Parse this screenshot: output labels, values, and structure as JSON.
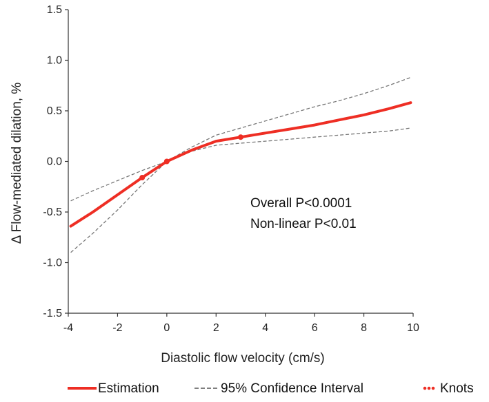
{
  "chart_data": {
    "type": "line",
    "title": "",
    "xlabel": "Diastolic flow velocity (cm/s)",
    "ylabel": "Δ Flow-mediated dilation, %",
    "xlim": [
      -4,
      10
    ],
    "ylim": [
      -1.5,
      1.5
    ],
    "x_ticks": [
      "-4",
      "-2",
      "0",
      "2",
      "4",
      "6",
      "8",
      "10"
    ],
    "y_ticks": [
      "1.5",
      "1.0",
      "0.5",
      "0.0",
      "-0.5",
      "-1.0",
      "-1.5"
    ],
    "grid": false,
    "legend_position": "bottom",
    "colors": {
      "estimation": "#ee2e24",
      "ci": "#777777",
      "knots": "#ee2e24"
    },
    "series": [
      {
        "name": "Estimation",
        "style": "solid",
        "x": [
          -3.9,
          -3,
          -2,
          -1,
          0,
          1,
          2,
          3,
          4,
          5,
          6,
          7,
          8,
          9,
          9.9
        ],
        "y": [
          -0.64,
          -0.5,
          -0.33,
          -0.16,
          0.0,
          0.11,
          0.2,
          0.24,
          0.28,
          0.32,
          0.36,
          0.41,
          0.46,
          0.52,
          0.58
        ]
      },
      {
        "name": "95% Confidence Interval",
        "style": "dashed",
        "x": [
          -3.9,
          -3,
          -2,
          -1,
          0,
          1,
          2,
          3,
          4,
          5,
          6,
          7,
          8,
          9,
          9.9
        ],
        "y": [
          -0.39,
          -0.29,
          -0.19,
          -0.09,
          0.0,
          0.14,
          0.26,
          0.33,
          0.4,
          0.47,
          0.54,
          0.6,
          0.67,
          0.75,
          0.83
        ]
      },
      {
        "name": "95% Confidence Interval lower",
        "style": "dashed",
        "x": [
          -3.9,
          -3,
          -2,
          -1,
          0,
          1,
          2,
          3,
          4,
          5,
          6,
          7,
          8,
          9,
          9.9
        ],
        "y": [
          -0.9,
          -0.71,
          -0.48,
          -0.23,
          0.0,
          0.1,
          0.16,
          0.18,
          0.2,
          0.22,
          0.24,
          0.26,
          0.28,
          0.3,
          0.33
        ]
      }
    ],
    "knots": {
      "name": "Knots",
      "x": [
        -1,
        0,
        3
      ],
      "y": [
        -0.16,
        0.0,
        0.24
      ]
    },
    "annotations": [
      "Overall P<0.0001",
      "Non-linear P<0.01"
    ],
    "legend": [
      {
        "label": "Estimation",
        "style": "solid"
      },
      {
        "label": "95% Confidence Interval",
        "style": "dashed"
      },
      {
        "label": "Knots",
        "style": "dots"
      }
    ]
  }
}
